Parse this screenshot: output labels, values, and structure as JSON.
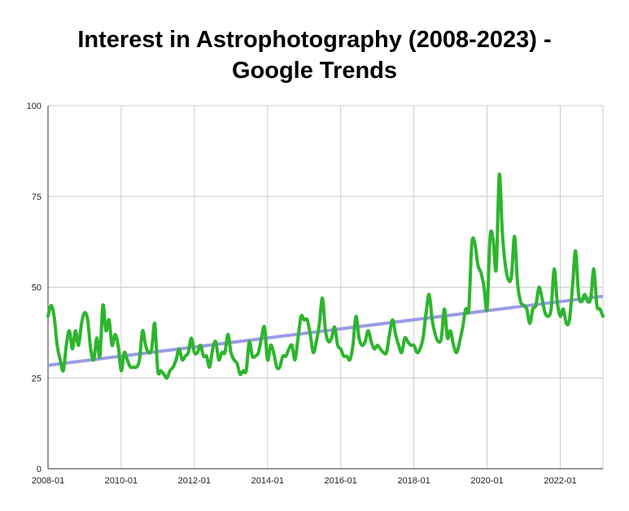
{
  "chart_data": {
    "type": "line",
    "title": "Interest in Astrophotography (2008-2023) -\nGoogle Trends",
    "xlabel": "",
    "ylabel": "",
    "ylim": [
      0,
      100
    ],
    "xlim": [
      "2008-01",
      "2023-03"
    ],
    "yticks": [
      0,
      25,
      50,
      75,
      100
    ],
    "xticks": [
      "2008-01",
      "2010-01",
      "2012-01",
      "2014-01",
      "2016-01",
      "2018-01",
      "2020-01",
      "2022-01"
    ],
    "grid": true,
    "legend": "none",
    "colors": {
      "series": "#2db52d",
      "trend": "#9b9be6",
      "grid": "#cccccc",
      "axis": "#333333"
    },
    "series": [
      {
        "values": [
          [
            "2008-01",
            42
          ],
          [
            "2008-02",
            45
          ],
          [
            "2008-03",
            42
          ],
          [
            "2008-04",
            34
          ],
          [
            "2008-05",
            30
          ],
          [
            "2008-06",
            27
          ],
          [
            "2008-07",
            34
          ],
          [
            "2008-08",
            38
          ],
          [
            "2008-09",
            33
          ],
          [
            "2008-10",
            38
          ],
          [
            "2008-11",
            34
          ],
          [
            "2008-12",
            40
          ],
          [
            "2009-01",
            43
          ],
          [
            "2009-02",
            41
          ],
          [
            "2009-03",
            33
          ],
          [
            "2009-04",
            30
          ],
          [
            "2009-05",
            36
          ],
          [
            "2009-06",
            31
          ],
          [
            "2009-07",
            45
          ],
          [
            "2009-08",
            38
          ],
          [
            "2009-09",
            41
          ],
          [
            "2009-10",
            34
          ],
          [
            "2009-11",
            37
          ],
          [
            "2009-12",
            34
          ],
          [
            "2010-01",
            27
          ],
          [
            "2010-02",
            32
          ],
          [
            "2010-03",
            30
          ],
          [
            "2010-04",
            28
          ],
          [
            "2010-05",
            28
          ],
          [
            "2010-06",
            28
          ],
          [
            "2010-07",
            30
          ],
          [
            "2010-08",
            38
          ],
          [
            "2010-09",
            34
          ],
          [
            "2010-10",
            32
          ],
          [
            "2010-11",
            33
          ],
          [
            "2010-12",
            40
          ],
          [
            "2011-01",
            27
          ],
          [
            "2011-02",
            27
          ],
          [
            "2011-03",
            26
          ],
          [
            "2011-04",
            25
          ],
          [
            "2011-05",
            27
          ],
          [
            "2011-06",
            28
          ],
          [
            "2011-07",
            30
          ],
          [
            "2011-08",
            33
          ],
          [
            "2011-09",
            30
          ],
          [
            "2011-10",
            31
          ],
          [
            "2011-11",
            32
          ],
          [
            "2011-12",
            36
          ],
          [
            "2012-01",
            32
          ],
          [
            "2012-02",
            32
          ],
          [
            "2012-03",
            34
          ],
          [
            "2012-04",
            31
          ],
          [
            "2012-05",
            31
          ],
          [
            "2012-06",
            28
          ],
          [
            "2012-07",
            33
          ],
          [
            "2012-08",
            35
          ],
          [
            "2012-09",
            30
          ],
          [
            "2012-10",
            32
          ],
          [
            "2012-11",
            32
          ],
          [
            "2012-12",
            37
          ],
          [
            "2013-01",
            32
          ],
          [
            "2013-02",
            30
          ],
          [
            "2013-03",
            29
          ],
          [
            "2013-04",
            26
          ],
          [
            "2013-05",
            27
          ],
          [
            "2013-06",
            27
          ],
          [
            "2013-07",
            35
          ],
          [
            "2013-08",
            31
          ],
          [
            "2013-09",
            31
          ],
          [
            "2013-10",
            32
          ],
          [
            "2013-11",
            36
          ],
          [
            "2013-12",
            39
          ],
          [
            "2014-01",
            30
          ],
          [
            "2014-02",
            34
          ],
          [
            "2014-03",
            32
          ],
          [
            "2014-04",
            28
          ],
          [
            "2014-05",
            28
          ],
          [
            "2014-06",
            31
          ],
          [
            "2014-07",
            31
          ],
          [
            "2014-08",
            33
          ],
          [
            "2014-09",
            34
          ],
          [
            "2014-10",
            30
          ],
          [
            "2014-11",
            36
          ],
          [
            "2014-12",
            42
          ],
          [
            "2015-01",
            41
          ],
          [
            "2015-02",
            41
          ],
          [
            "2015-03",
            37
          ],
          [
            "2015-04",
            32
          ],
          [
            "2015-05",
            35
          ],
          [
            "2015-06",
            40
          ],
          [
            "2015-07",
            47
          ],
          [
            "2015-08",
            38
          ],
          [
            "2015-09",
            35
          ],
          [
            "2015-10",
            36
          ],
          [
            "2015-11",
            39
          ],
          [
            "2015-12",
            34
          ],
          [
            "2016-01",
            33
          ],
          [
            "2016-02",
            31
          ],
          [
            "2016-03",
            31
          ],
          [
            "2016-04",
            30
          ],
          [
            "2016-05",
            34
          ],
          [
            "2016-06",
            42
          ],
          [
            "2016-07",
            36
          ],
          [
            "2016-08",
            34
          ],
          [
            "2016-09",
            35
          ],
          [
            "2016-10",
            38
          ],
          [
            "2016-11",
            35
          ],
          [
            "2016-12",
            33
          ],
          [
            "2017-01",
            34
          ],
          [
            "2017-02",
            33
          ],
          [
            "2017-03",
            32
          ],
          [
            "2017-04",
            32
          ],
          [
            "2017-05",
            37
          ],
          [
            "2017-06",
            41
          ],
          [
            "2017-07",
            37
          ],
          [
            "2017-08",
            34
          ],
          [
            "2017-09",
            32
          ],
          [
            "2017-10",
            36
          ],
          [
            "2017-11",
            35
          ],
          [
            "2017-12",
            34
          ],
          [
            "2018-01",
            34
          ],
          [
            "2018-02",
            32
          ],
          [
            "2018-03",
            33
          ],
          [
            "2018-04",
            36
          ],
          [
            "2018-05",
            43
          ],
          [
            "2018-06",
            48
          ],
          [
            "2018-07",
            41
          ],
          [
            "2018-08",
            37
          ],
          [
            "2018-09",
            35
          ],
          [
            "2018-10",
            36
          ],
          [
            "2018-11",
            44
          ],
          [
            "2018-12",
            36
          ],
          [
            "2019-01",
            38
          ],
          [
            "2019-02",
            34
          ],
          [
            "2019-03",
            32
          ],
          [
            "2019-04",
            35
          ],
          [
            "2019-05",
            39
          ],
          [
            "2019-06",
            44
          ],
          [
            "2019-07",
            44
          ],
          [
            "2019-08",
            62
          ],
          [
            "2019-09",
            62
          ],
          [
            "2019-10",
            56
          ],
          [
            "2019-11",
            54
          ],
          [
            "2019-12",
            50
          ],
          [
            "2020-01",
            44
          ],
          [
            "2020-02",
            64
          ],
          [
            "2020-03",
            63
          ],
          [
            "2020-04",
            55
          ],
          [
            "2020-05",
            81
          ],
          [
            "2020-06",
            65
          ],
          [
            "2020-07",
            56
          ],
          [
            "2020-08",
            52
          ],
          [
            "2020-09",
            53
          ],
          [
            "2020-10",
            64
          ],
          [
            "2020-11",
            51
          ],
          [
            "2020-12",
            46
          ],
          [
            "2021-01",
            45
          ],
          [
            "2021-02",
            44
          ],
          [
            "2021-03",
            40
          ],
          [
            "2021-04",
            44
          ],
          [
            "2021-05",
            45
          ],
          [
            "2021-06",
            50
          ],
          [
            "2021-07",
            47
          ],
          [
            "2021-08",
            43
          ],
          [
            "2021-09",
            42
          ],
          [
            "2021-10",
            44
          ],
          [
            "2021-11",
            55
          ],
          [
            "2021-12",
            46
          ],
          [
            "2022-01",
            42
          ],
          [
            "2022-02",
            44
          ],
          [
            "2022-03",
            40
          ],
          [
            "2022-04",
            41
          ],
          [
            "2022-05",
            50
          ],
          [
            "2022-06",
            60
          ],
          [
            "2022-07",
            48
          ],
          [
            "2022-08",
            46
          ],
          [
            "2022-09",
            48
          ],
          [
            "2022-10",
            46
          ],
          [
            "2022-11",
            47
          ],
          [
            "2022-12",
            55
          ],
          [
            "2023-01",
            45
          ],
          [
            "2023-02",
            44
          ],
          [
            "2023-03",
            42
          ]
        ]
      }
    ],
    "trendline": {
      "start": [
        "2008-01",
        28.5
      ],
      "end": [
        "2023-03",
        47.5
      ]
    }
  }
}
